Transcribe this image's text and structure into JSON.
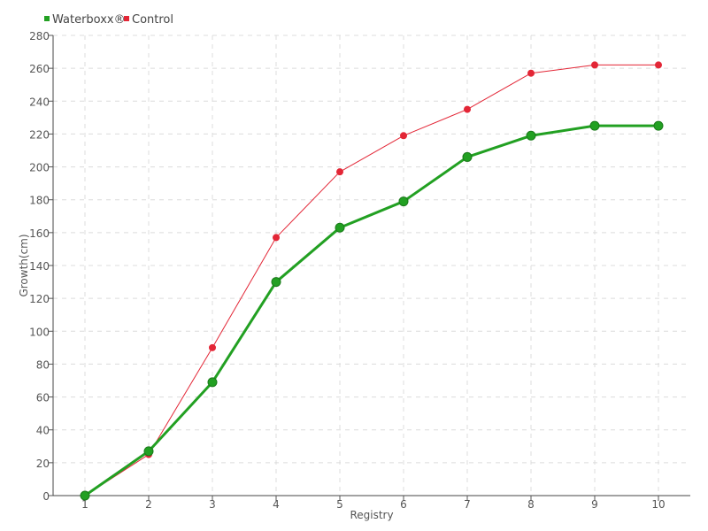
{
  "chart_data": {
    "type": "line",
    "title": "",
    "xlabel": "Registry",
    "ylabel": "Growth(cm)",
    "x": [
      1,
      2,
      3,
      4,
      5,
      6,
      7,
      8,
      9,
      10
    ],
    "x_tick_labels": [
      "1",
      "2",
      "3",
      "4",
      "5",
      "6",
      "7",
      "8",
      "9",
      "10"
    ],
    "ylim": [
      0,
      280
    ],
    "y_ticks": [
      0,
      20,
      40,
      60,
      80,
      100,
      120,
      140,
      160,
      180,
      200,
      220,
      240,
      260,
      280
    ],
    "y_tick_labels": [
      "0",
      "20",
      "40",
      "60",
      "80",
      "100",
      "120",
      "140",
      "160",
      "180",
      "200",
      "220",
      "240",
      "260",
      "280"
    ],
    "grid": true,
    "legend_position": "top-left",
    "series": [
      {
        "name": "Waterboxx®",
        "color": "#22a022",
        "values": [
          0,
          27,
          69,
          130,
          163,
          179,
          206,
          219,
          225,
          225
        ]
      },
      {
        "name": "Control",
        "color": "#e32636",
        "values": [
          0,
          25,
          90,
          157,
          197,
          219,
          235,
          257,
          262,
          262
        ]
      }
    ]
  }
}
